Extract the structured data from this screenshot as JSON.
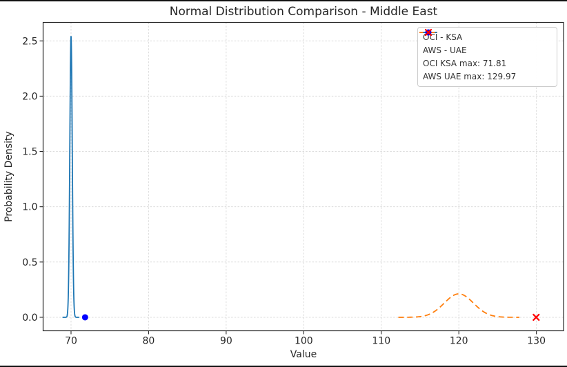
{
  "window": {
    "background": "#ffffff",
    "border_color": "#111111"
  },
  "chart_data": {
    "type": "line",
    "title": "Normal Distribution Comparison - Middle East",
    "xlabel": "Value",
    "ylabel": "Probability Density",
    "xlim": [
      66.4,
      133.5
    ],
    "ylim": [
      -0.122,
      2.667
    ],
    "x_ticks": [
      70,
      80,
      90,
      100,
      110,
      120,
      130
    ],
    "y_ticks": [
      0.0,
      0.5,
      1.0,
      1.5,
      2.0,
      2.5
    ],
    "grid": true,
    "grid_color": "#dcdcdc",
    "axis_color": "#262626",
    "legend_position": "upper right",
    "series": [
      {
        "name": "OCI - KSA",
        "color": "#1f77b4",
        "line_style": "solid",
        "distribution": "normal",
        "mean": 70,
        "std": 0.157,
        "peak_density": 2.54,
        "x_range": [
          68.9,
          71.05
        ]
      },
      {
        "name": "AWS - UAE",
        "color": "#ff7f0e",
        "line_style": "dashed",
        "distribution": "normal",
        "mean": 120,
        "std": 1.88,
        "peak_density": 0.212,
        "x_range": [
          112.2,
          127.8
        ]
      }
    ],
    "markers": [
      {
        "label": "OCI KSA max: 71.81",
        "x": 71.81,
        "y": 0,
        "marker": "circle",
        "color": "#0000ff"
      },
      {
        "label": "AWS UAE max: 129.97",
        "x": 129.97,
        "y": 0,
        "marker": "x",
        "color": "#ff0000"
      }
    ]
  }
}
